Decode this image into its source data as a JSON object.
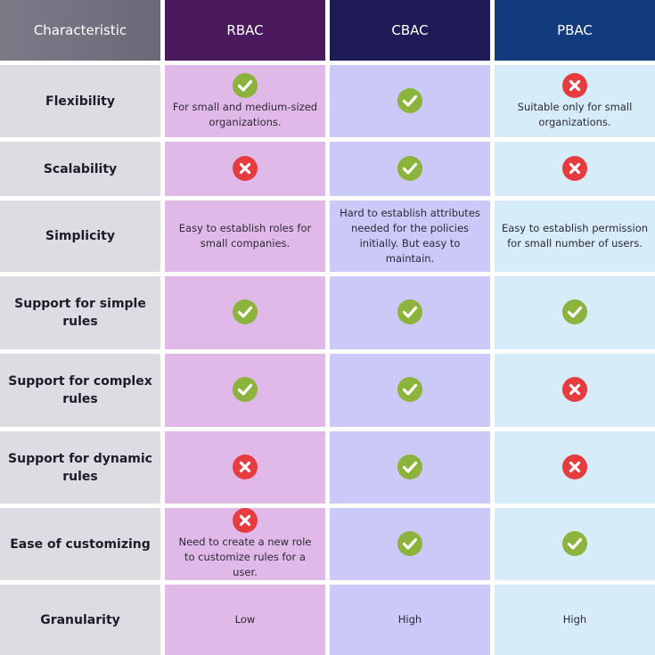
{
  "header": [
    "Characteristic",
    "RBAC",
    "CBAC",
    "PBAC"
  ],
  "rows": [
    {
      "label": "Flexibility",
      "cells": [
        {
          "icon": true,
          "text": "For small and medium-sized organizations."
        },
        {
          "icon": true
        },
        {
          "icon": false,
          "text": "Suitable only for small organizations."
        }
      ]
    },
    {
      "label": "Scalability",
      "cells": [
        {
          "icon": false
        },
        {
          "icon": true
        },
        {
          "icon": false
        }
      ]
    },
    {
      "label": "Simplicity",
      "cells": [
        {
          "text": "Easy to establish roles for small companies."
        },
        {
          "text": "Hard to establish attributes needed for the policies initially. But easy to maintain."
        },
        {
          "text": "Easy to establish permission for small number of users."
        }
      ]
    },
    {
      "label": "Support for simple rules",
      "cells": [
        {
          "icon": true
        },
        {
          "icon": true
        },
        {
          "icon": true
        }
      ]
    },
    {
      "label": "Support for complex rules",
      "cells": [
        {
          "icon": true
        },
        {
          "icon": true
        },
        {
          "icon": false
        }
      ]
    },
    {
      "label": "Support for dynamic rules",
      "cells": [
        {
          "icon": false
        },
        {
          "icon": true
        },
        {
          "icon": false
        }
      ]
    },
    {
      "label": "Ease of customizing",
      "cells": [
        {
          "icon": false,
          "text": "Need to create a new role to customize rules for a user."
        },
        {
          "icon": true
        },
        {
          "icon": true
        }
      ]
    },
    {
      "label": "Granularity",
      "cells": [
        {
          "text": "Low"
        },
        {
          "text": "High"
        },
        {
          "text": "High"
        }
      ]
    }
  ]
}
